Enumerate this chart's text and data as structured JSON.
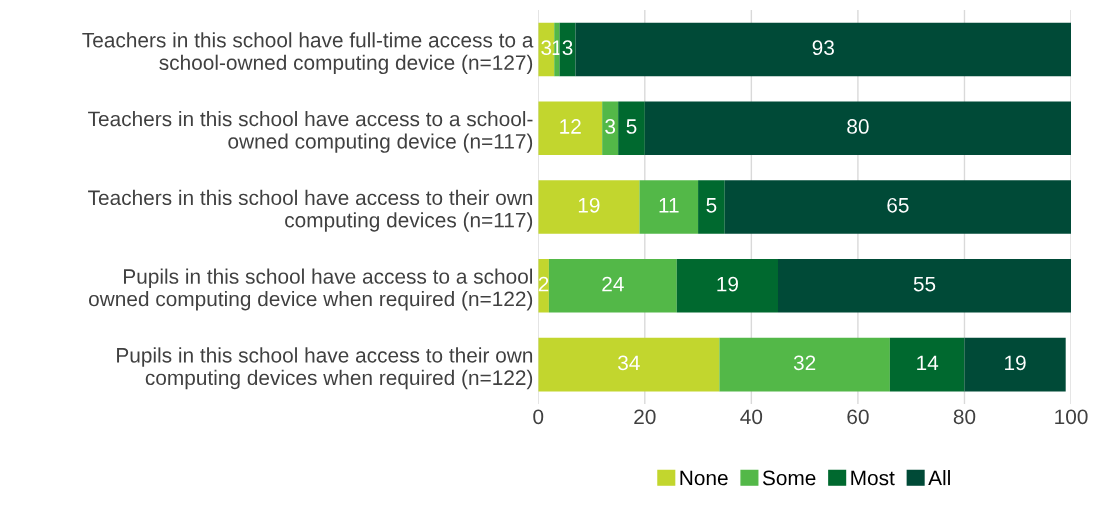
{
  "chart_data": {
    "type": "bar",
    "orientation": "horizontal",
    "stacked": true,
    "data_labels": true,
    "grid": "x",
    "legend": "bottom",
    "categories": [
      "Teachers in this school have full-time access to a\nschool-owned computing device (n=127)",
      "Teachers in this school have access to a school-\nowned computing device (n=117)",
      "Teachers in this school have access to their own\ncomputing devices (n=117)",
      "Pupils in this school have access to a school\nowned computing device when required (n=122)",
      "Pupils in this school have access to their own\ncomputing devices when required (n=122)"
    ],
    "series": [
      {
        "name": "None",
        "color": "#c2d62e",
        "values": [
          3,
          12,
          19,
          2,
          34
        ]
      },
      {
        "name": "Some",
        "color": "#53b848",
        "values": [
          1,
          3,
          11,
          24,
          32
        ]
      },
      {
        "name": "Most",
        "color": "#00692f",
        "values": [
          3,
          5,
          5,
          19,
          14
        ]
      },
      {
        "name": "All",
        "color": "#004a37",
        "values": [
          93,
          80,
          65,
          55,
          19
        ]
      }
    ],
    "xlim": [
      0,
      100
    ],
    "xticks": [
      0,
      20,
      40,
      60,
      80,
      100
    ]
  }
}
